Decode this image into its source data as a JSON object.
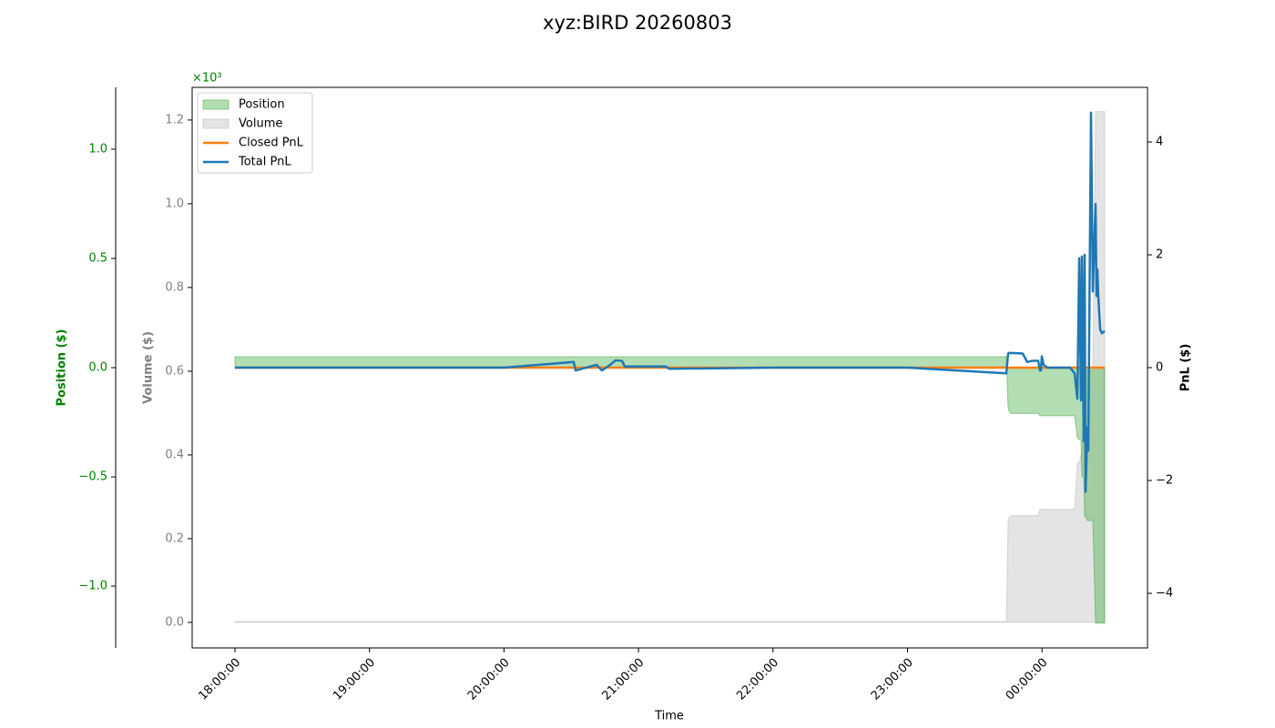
{
  "chart_data": {
    "type": "line",
    "title": "xyz:BIRD 20260803",
    "x_label": "Time",
    "x": [
      "18:00:00",
      "19:00:00",
      "20:00:00",
      "20:31:07",
      "20:31:56",
      "20:41:16",
      "20:43:42",
      "20:47:22",
      "20:49:48",
      "20:52:39",
      "20:53:52",
      "21:12:09",
      "21:13:46",
      "22:00:00",
      "23:00:00",
      "23:44:05",
      "23:44:53",
      "23:45:18",
      "23:46:07",
      "23:51:23",
      "23:53:25",
      "23:55:27",
      "23:58:17",
      "23:59:07",
      "23:59:31",
      "23:59:55",
      "00:00:44",
      "00:02:22",
      "00:12:31",
      "00:14:32",
      "00:15:46",
      "00:16:35",
      "00:17:23",
      "00:17:48",
      "00:18:36",
      "00:19:01",
      "00:19:25",
      "00:20:14",
      "00:20:38",
      "00:21:51",
      "00:22:40",
      "00:23:53",
      "00:24:18",
      "00:24:42",
      "00:25:06",
      "00:25:55",
      "00:26:44",
      "00:27:57"
    ],
    "xlim": [
      "17:40:54",
      "00:47:03"
    ],
    "xticks": [
      "18:00:00",
      "19:00:00",
      "20:00:00",
      "21:00:00",
      "22:00:00",
      "23:00:00",
      "00:00:00"
    ],
    "axes": [
      {
        "label": "Position ($)",
        "color": "#008000",
        "offset_label": "×10³",
        "lim": [
          -1.283,
          1.283
        ],
        "ticks": [
          {
            "value": -1,
            "label": "−1.0"
          },
          {
            "value": -0.5,
            "label": "−0.5"
          },
          {
            "value": 0,
            "label": "0.0"
          },
          0.5,
          {
            "value": 1,
            "label": "1.0"
          }
        ]
      },
      {
        "label": "Volume ($)",
        "color": "#808080",
        "lim": [
          -0.061,
          1.278
        ],
        "ticks": [
          {
            "value": 0,
            "label": "0.0"
          },
          0.2,
          0.4,
          0.6,
          0.8,
          {
            "value": 1,
            "label": "1.0"
          },
          1.2
        ]
      },
      {
        "label": "PnL ($)",
        "color": "#000000",
        "lim": [
          -4.968,
          4.968
        ],
        "ticks": [
          {
            "value": -4,
            "label": "−4"
          },
          {
            "value": -2,
            "label": "−2"
          },
          0,
          2,
          4
        ]
      }
    ],
    "legend": "upper left",
    "series": [
      {
        "name": "Position",
        "style": "area",
        "axis": 0,
        "color": "#2ca02c",
        "alpha": 0.36,
        "values": [
          0.05,
          0.05,
          0.05,
          0.05,
          0.05,
          0.05,
          0.05,
          0.05,
          0.05,
          0.05,
          0.05,
          0.05,
          0.05,
          0.05,
          0.05,
          0.05,
          -0.18,
          -0.2,
          -0.21,
          -0.21,
          -0.21,
          -0.21,
          -0.21,
          -0.22,
          -0.22,
          -0.22,
          -0.22,
          -0.22,
          -0.22,
          -0.22,
          -0.32,
          -0.33,
          -0.33,
          -0.5,
          -0.5,
          -0.68,
          -0.68,
          -0.7,
          -0.7,
          -0.7,
          -0.7,
          -1.17,
          -1.17,
          -1.17,
          -1.17,
          -1.17,
          -1.17,
          -1.17
        ]
      },
      {
        "name": "Volume",
        "style": "area",
        "axis": 1,
        "color": "#aaaaaa",
        "alpha": 0.32,
        "values": [
          0.002,
          0.002,
          0.002,
          0.002,
          0.002,
          0.002,
          0.002,
          0.002,
          0.002,
          0.002,
          0.002,
          0.002,
          0.002,
          0.002,
          0.002,
          0.002,
          0.24,
          0.25,
          0.255,
          0.255,
          0.255,
          0.255,
          0.255,
          0.27,
          0.27,
          0.27,
          0.27,
          0.27,
          0.27,
          0.27,
          0.38,
          0.38,
          0.4,
          0.4,
          0.55,
          0.55,
          0.6,
          0.6,
          0.6,
          0.6,
          0.6,
          1.22,
          1.22,
          1.22,
          1.22,
          1.22,
          1.22,
          1.22
        ]
      },
      {
        "name": "Closed PnL",
        "style": "line",
        "axis": 2,
        "color": "#ff7f0e",
        "values": [
          0,
          0,
          0,
          0,
          0,
          0,
          0,
          0,
          0,
          0,
          0,
          0,
          0,
          0,
          0,
          0,
          0,
          0,
          0,
          0,
          0,
          0,
          0,
          0,
          0,
          0,
          0,
          0,
          0,
          0,
          0,
          0,
          0,
          0,
          0,
          0,
          0,
          0,
          0,
          0,
          0,
          0,
          0,
          0,
          0,
          0,
          0,
          0
        ]
      },
      {
        "name": "Total PnL",
        "style": "line",
        "axis": 2,
        "color": "#1f77b4",
        "values": [
          0,
          0,
          0,
          0.1,
          -0.05,
          0.05,
          -0.05,
          0.05,
          0.13,
          0.12,
          0.02,
          0.02,
          -0.02,
          0,
          0,
          -0.1,
          0.25,
          0.26,
          0.26,
          0.25,
          0.1,
          0.12,
          0.12,
          -0.05,
          -0.05,
          0.2,
          0.05,
          0,
          0,
          -0.1,
          -0.55,
          1.94,
          -0.58,
          1.97,
          -1.3,
          2.0,
          -2.2,
          -1.06,
          -1.47,
          4.52,
          1.35,
          2.9,
          1.27,
          1.74,
          1.27,
          0.68,
          0.61,
          0.65
        ]
      }
    ]
  }
}
